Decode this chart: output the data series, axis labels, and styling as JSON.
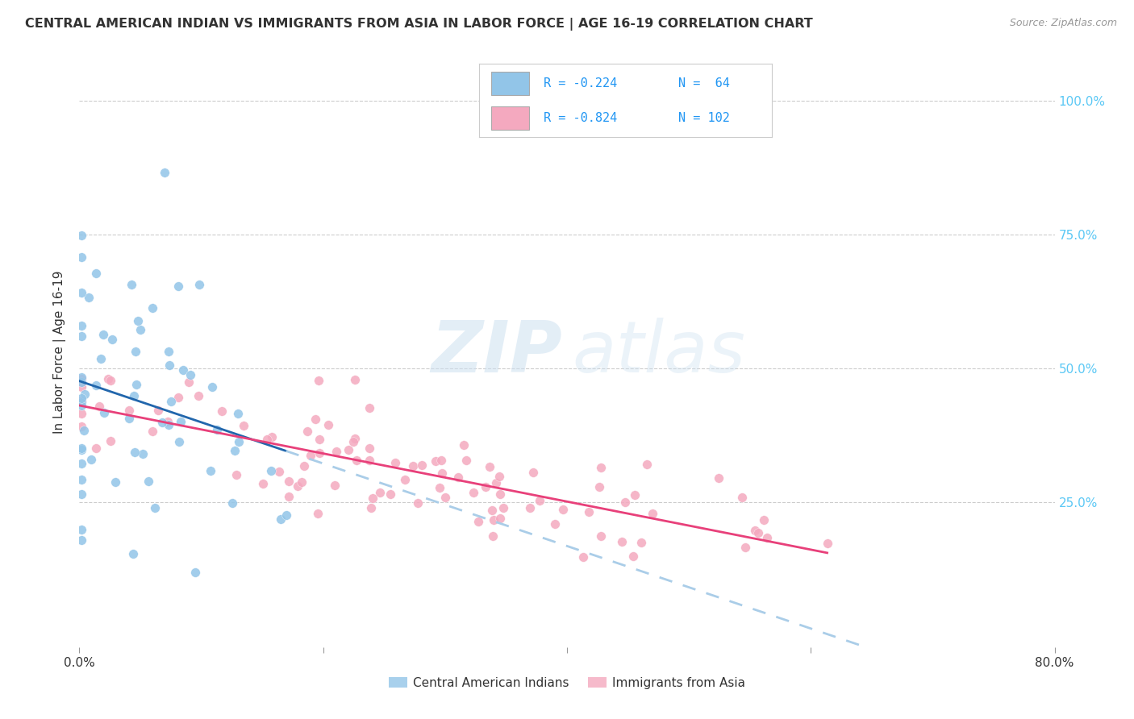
{
  "title": "CENTRAL AMERICAN INDIAN VS IMMIGRANTS FROM ASIA IN LABOR FORCE | AGE 16-19 CORRELATION CHART",
  "source": "Source: ZipAtlas.com",
  "ylabel": "In Labor Force | Age 16-19",
  "xlim": [
    0.0,
    0.8
  ],
  "ylim": [
    -0.02,
    1.08
  ],
  "watermark_zip": "ZIP",
  "watermark_atlas": "atlas",
  "legend_R_blue": "R = -0.224",
  "legend_N_blue": "N =  64",
  "legend_R_pink": "R = -0.824",
  "legend_N_pink": "N = 102",
  "legend_bottom_blue": "Central American Indians",
  "legend_bottom_pink": "Immigrants from Asia",
  "blue_scatter_color": "#92c5e8",
  "pink_scatter_color": "#f4a9bf",
  "blue_line_color": "#2166ac",
  "pink_line_color": "#e8407a",
  "blue_dashed_color": "#aacde8",
  "text_color_blue": "#2196f3",
  "text_color_dark": "#333333",
  "text_color_source": "#999999",
  "grid_color": "#cccccc",
  "right_axis_color": "#5bc8f5",
  "blue_seed": 77,
  "pink_seed": 42
}
